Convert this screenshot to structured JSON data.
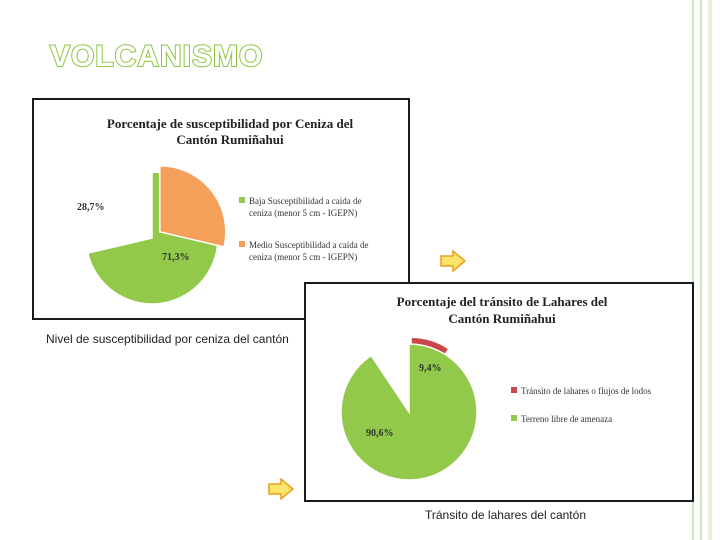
{
  "slide": {
    "title": "VOLCANISMO"
  },
  "colors": {
    "accent": "#8cc63f",
    "low": "#92c94a",
    "medium": "#f4a05a",
    "danger": "#c9484a"
  },
  "icons": {
    "next_arrow": "right-arrow-icon"
  },
  "charts": [
    {
      "caption": "Nivel de susceptibilidad por ceniza del cantón",
      "title_line1": "Porcentaje de susceptibilidad por Ceniza del",
      "title_line2": "Cantón Rumiñahui",
      "legend": [
        "Baja Susceptibilidad a caída de ceniza (menor 5 cm - IGEPN)",
        "Medio Susceptibilidad a caída de ceniza (menor 5 cm - IGEPN)"
      ],
      "labels": [
        "71,3%",
        "28,7%"
      ]
    },
    {
      "caption": "Tránsito de lahares del cantón",
      "title_line1": "Porcentaje del tránsito de Lahares del",
      "title_line2": "Cantón Rumiñahui",
      "legend": [
        "Tránsito de lahares o flujos de lodos",
        "Terreno libre de amenaza"
      ],
      "labels": [
        "9,4%",
        "90,6%"
      ]
    }
  ],
  "chart_data": [
    {
      "type": "pie",
      "title": "Porcentaje de susceptibilidad por Ceniza del Cantón Rumiñahui",
      "categories": [
        "Baja Susceptibilidad a caída de ceniza (menor 5 cm - IGEPN)",
        "Medio Susceptibilidad a caída de ceniza (menor 5 cm - IGEPN)"
      ],
      "values": [
        71.3,
        28.7
      ],
      "colors": [
        "#92c94a",
        "#f4a05a"
      ],
      "exploded": 1,
      "legend": "right"
    },
    {
      "type": "pie",
      "title": "Porcentaje del tránsito de Lahares del Cantón Rumiñahui",
      "categories": [
        "Tránsito de lahares o flujos de lodos",
        "Terreno libre de amenaza"
      ],
      "values": [
        9.4,
        90.6
      ],
      "colors": [
        "#c9484a",
        "#92c94a"
      ],
      "exploded": 0,
      "legend": "right"
    }
  ]
}
